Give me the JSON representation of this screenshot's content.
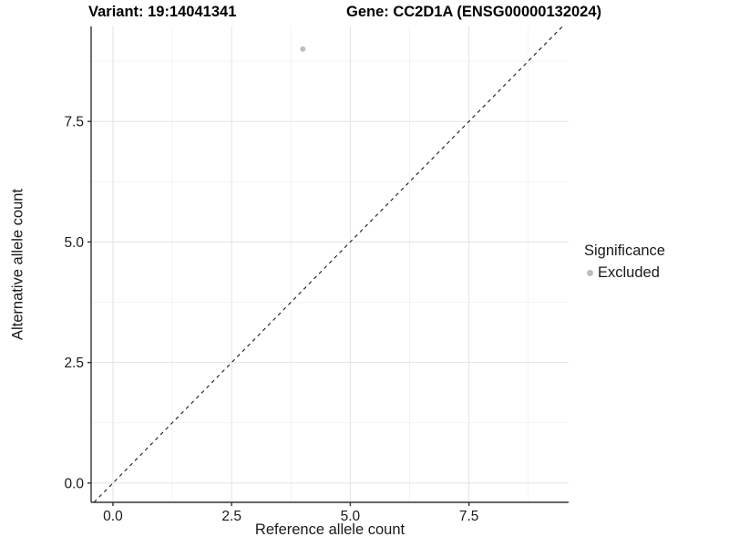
{
  "chart_data": {
    "type": "scatter",
    "title_left": "Variant: 19:14041341",
    "title_right": "Gene: CC2D1A (ENSG00000132024)",
    "xlabel": "Reference allele count",
    "ylabel": "Alternative allele count",
    "xlim": [
      -0.46,
      9.6
    ],
    "ylim": [
      -0.4,
      9.47
    ],
    "x_major_ticks": [
      0.0,
      2.5,
      5.0,
      7.5
    ],
    "x_tick_labels": [
      "0.0",
      "2.5",
      "5.0",
      "7.5"
    ],
    "x_minor_ticks": [
      1.25,
      3.75,
      6.25,
      8.75
    ],
    "y_major_ticks": [
      0.0,
      2.5,
      5.0,
      7.5
    ],
    "y_tick_labels": [
      "0.0",
      "2.5",
      "5.0",
      "7.5"
    ],
    "y_minor_ticks": [
      1.25,
      3.75,
      6.25,
      8.75
    ],
    "grid": true,
    "series": [
      {
        "name": "Excluded",
        "color": "#bdbdbd",
        "points": [
          {
            "x": 4,
            "y": 9
          }
        ]
      }
    ],
    "reference_line": {
      "kind": "identity",
      "slope": 1,
      "intercept": 0,
      "style": "dashed",
      "color": "#1a1a1a"
    },
    "legend": {
      "title": "Significance",
      "position": "right",
      "entries": [
        {
          "label": "Excluded",
          "color": "#bdbdbd",
          "marker": "circle"
        }
      ]
    },
    "colors": {
      "grid_major": "#e3e3e3",
      "grid_minor": "#f0f0f0",
      "axis": "#333333",
      "point": "#bdbdbd"
    }
  }
}
